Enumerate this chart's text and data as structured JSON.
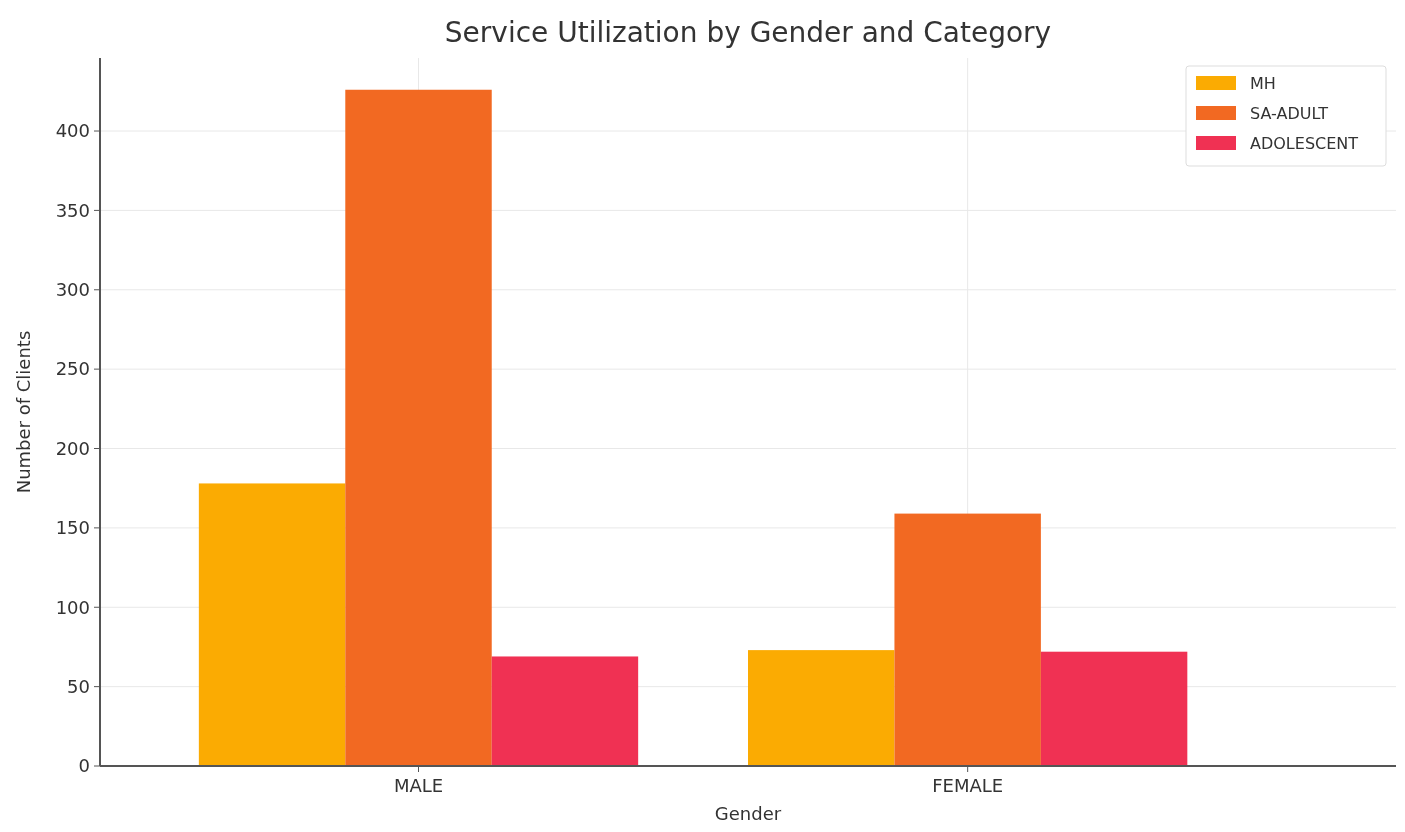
{
  "chart_data": {
    "type": "bar",
    "title": "Service Utilization by Gender and Category",
    "xlabel": "Gender",
    "ylabel": "Number of Clients",
    "categories": [
      "MALE",
      "FEMALE"
    ],
    "series": [
      {
        "name": "MH",
        "color": "#fbab02",
        "values": [
          178,
          73
        ]
      },
      {
        "name": "SA-ADULT",
        "color": "#f26922",
        "values": [
          426,
          159
        ]
      },
      {
        "name": "ADOLESCENT",
        "color": "#f03153",
        "values": [
          69,
          72
        ]
      }
    ],
    "ylim": [
      0,
      446
    ],
    "yticks": [
      0,
      50,
      100,
      150,
      200,
      250,
      300,
      350,
      400
    ],
    "grid": true,
    "legend": "top right"
  }
}
